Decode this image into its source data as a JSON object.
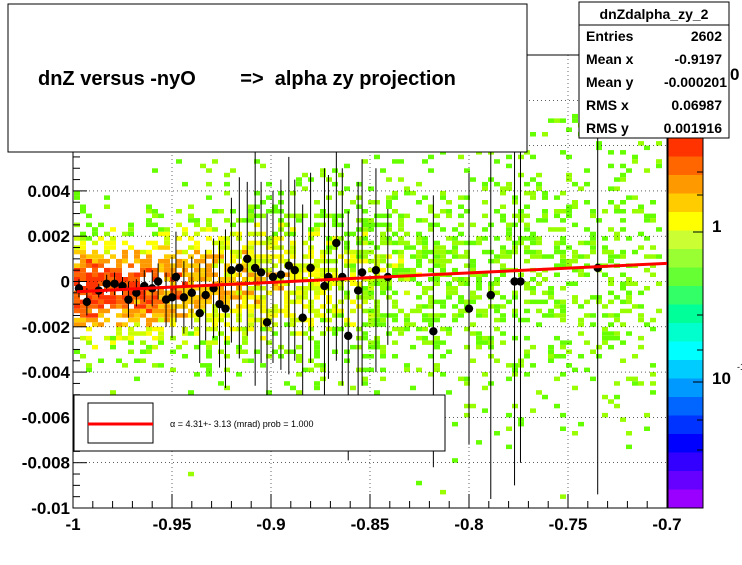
{
  "chart_data": {
    "type": "scatter",
    "title": "dnZ versus -nyO        =>  alpha zy projection",
    "xlim": [
      -1.0,
      -0.7
    ],
    "ylim": [
      -0.01,
      0.01
    ],
    "x_ticks": [
      "-1",
      "-0.95",
      "-0.9",
      "-0.85",
      "-0.8",
      "-0.75",
      "-0.7"
    ],
    "x_tick_values": [
      -1.0,
      -0.95,
      -0.9,
      -0.85,
      -0.8,
      -0.75,
      -0.7
    ],
    "y_ticks": [
      "-0.01",
      "-0.008",
      "-0.006",
      "-0.004",
      "-0.002",
      "0",
      "0.002",
      "0.004"
    ],
    "y_tick_values": [
      -0.01,
      -0.008,
      -0.006,
      -0.004,
      -0.002,
      0,
      0.002,
      0.004
    ],
    "colorbar_labels": [
      "1",
      "10"
    ],
    "grid": true,
    "stats_box": {
      "name": "dnZdalpha_zy_2",
      "rows": [
        {
          "label": "Entries",
          "value": "2602"
        },
        {
          "label": "Mean x",
          "value": "-0.9197"
        },
        {
          "label": "Mean y",
          "value": "-0.000201"
        },
        {
          "label": "RMS x",
          "value": "0.06987"
        },
        {
          "label": "RMS y",
          "value": "0.001916"
        }
      ]
    },
    "fit_legend": "α =    4.31+- 3.13 (mrad) prob = 1.000",
    "fit_line": {
      "x": [
        -0.998,
        -0.7
      ],
      "y": [
        -0.00045,
        0.0008
      ],
      "color": "#ff0000"
    },
    "profile_points": [
      {
        "x": -0.997,
        "y": -0.0003,
        "err": 0.0004
      },
      {
        "x": -0.993,
        "y": -0.0009,
        "err": 0.0006
      },
      {
        "x": -0.987,
        "y": -0.0004,
        "err": 0.0003
      },
      {
        "x": -0.983,
        "y": -0.0001,
        "err": 0.0004
      },
      {
        "x": -0.979,
        "y": -0.0001,
        "err": 0.0005
      },
      {
        "x": -0.975,
        "y": -0.0002,
        "err": 0.0004
      },
      {
        "x": -0.972,
        "y": -0.0008,
        "err": 0.0008
      },
      {
        "x": -0.968,
        "y": -0.0005,
        "err": 0.0006
      },
      {
        "x": -0.964,
        "y": -0.0002,
        "err": 0.0007
      },
      {
        "x": -0.96,
        "y": -0.0003,
        "err": 0.0008
      },
      {
        "x": -0.957,
        "y": 0.0,
        "err": 0.0008
      },
      {
        "x": -0.953,
        "y": -0.0008,
        "err": 0.0012
      },
      {
        "x": -0.95,
        "y": -0.0007,
        "err": 0.0018
      },
      {
        "x": -0.948,
        "y": 0.0002,
        "err": 0.002
      },
      {
        "x": -0.944,
        "y": -0.0007,
        "err": 0.0016
      },
      {
        "x": -0.94,
        "y": -0.0005,
        "err": 0.0016
      },
      {
        "x": -0.936,
        "y": -0.0014,
        "err": 0.0022
      },
      {
        "x": -0.933,
        "y": -0.0006,
        "err": 0.002
      },
      {
        "x": -0.929,
        "y": -0.0003,
        "err": 0.0022
      },
      {
        "x": -0.926,
        "y": -0.001,
        "err": 0.0028
      },
      {
        "x": -0.923,
        "y": -0.0012,
        "err": 0.0035
      },
      {
        "x": -0.92,
        "y": 0.0005,
        "err": 0.0032
      },
      {
        "x": -0.916,
        "y": 0.0006,
        "err": 0.004
      },
      {
        "x": -0.912,
        "y": 0.001,
        "err": 0.0034
      },
      {
        "x": -0.908,
        "y": 0.0006,
        "err": 0.0052
      },
      {
        "x": -0.905,
        "y": 0.0004,
        "err": 0.004
      },
      {
        "x": -0.902,
        "y": -0.0018,
        "err": 0.0048
      },
      {
        "x": -0.899,
        "y": 0.0002,
        "err": 0.0038
      },
      {
        "x": -0.895,
        "y": 0.0003,
        "err": 0.0042
      },
      {
        "x": -0.891,
        "y": 0.0007,
        "err": 0.0048
      },
      {
        "x": -0.888,
        "y": 0.0005,
        "err": 0.004
      },
      {
        "x": -0.884,
        "y": -0.0016,
        "err": 0.005
      },
      {
        "x": -0.88,
        "y": 0.0006,
        "err": 0.0042
      },
      {
        "x": -0.873,
        "y": -0.0002,
        "err": 0.0052
      },
      {
        "x": -0.871,
        "y": 0.0002,
        "err": 0.0045
      },
      {
        "x": -0.867,
        "y": 0.0017,
        "err": 0.0052
      },
      {
        "x": -0.864,
        "y": 0.0002,
        "err": 0.0048
      },
      {
        "x": -0.861,
        "y": -0.0024,
        "err": 0.0055
      },
      {
        "x": -0.856,
        "y": -0.0004,
        "err": 0.0048
      },
      {
        "x": -0.854,
        "y": 0.0004,
        "err": 0.005
      },
      {
        "x": -0.847,
        "y": 0.0005,
        "err": 0.0045
      },
      {
        "x": -0.841,
        "y": 0.0002,
        "err": 0.003
      },
      {
        "x": -0.818,
        "y": -0.0022,
        "err": 0.006
      },
      {
        "x": -0.8,
        "y": -0.0012,
        "err": 0.006
      },
      {
        "x": -0.789,
        "y": -0.0006,
        "err": 0.009
      },
      {
        "x": -0.777,
        "y": 0.0,
        "err": 0.009
      },
      {
        "x": -0.774,
        "y": 0.0,
        "err": 0.008
      },
      {
        "x": -0.735,
        "y": 0.0006,
        "err": 0.01
      }
    ]
  }
}
